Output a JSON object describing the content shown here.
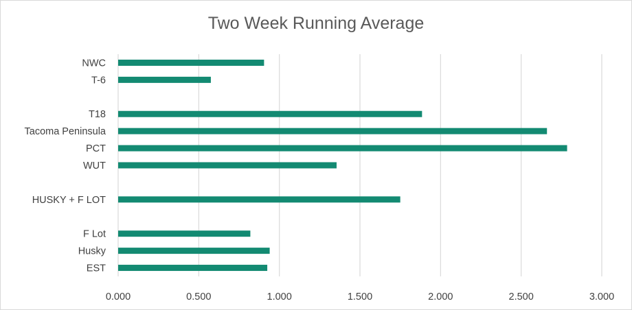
{
  "chart_data": {
    "type": "bar",
    "orientation": "horizontal",
    "title": "Two Week Running Average",
    "categories": [
      "NWC",
      "T-6",
      "",
      "T18",
      "Tacoma Peninsula",
      "PCT",
      "WUT",
      "",
      "HUSKY + F LOT",
      "",
      "F Lot",
      "Husky",
      "EST"
    ],
    "values": [
      0.905,
      0.575,
      null,
      1.885,
      2.66,
      2.785,
      1.355,
      null,
      1.75,
      null,
      0.82,
      0.94,
      0.925
    ],
    "xlim": [
      0,
      3
    ],
    "xticks": [
      "0.000",
      "0.500",
      "1.000",
      "1.500",
      "2.000",
      "2.500",
      "3.000"
    ],
    "xtick_values": [
      0,
      0.5,
      1,
      1.5,
      2,
      2.5,
      3
    ],
    "grid": true,
    "legend": "none",
    "bar_color": "#138a72",
    "grid_color": "#d9d9d9"
  }
}
